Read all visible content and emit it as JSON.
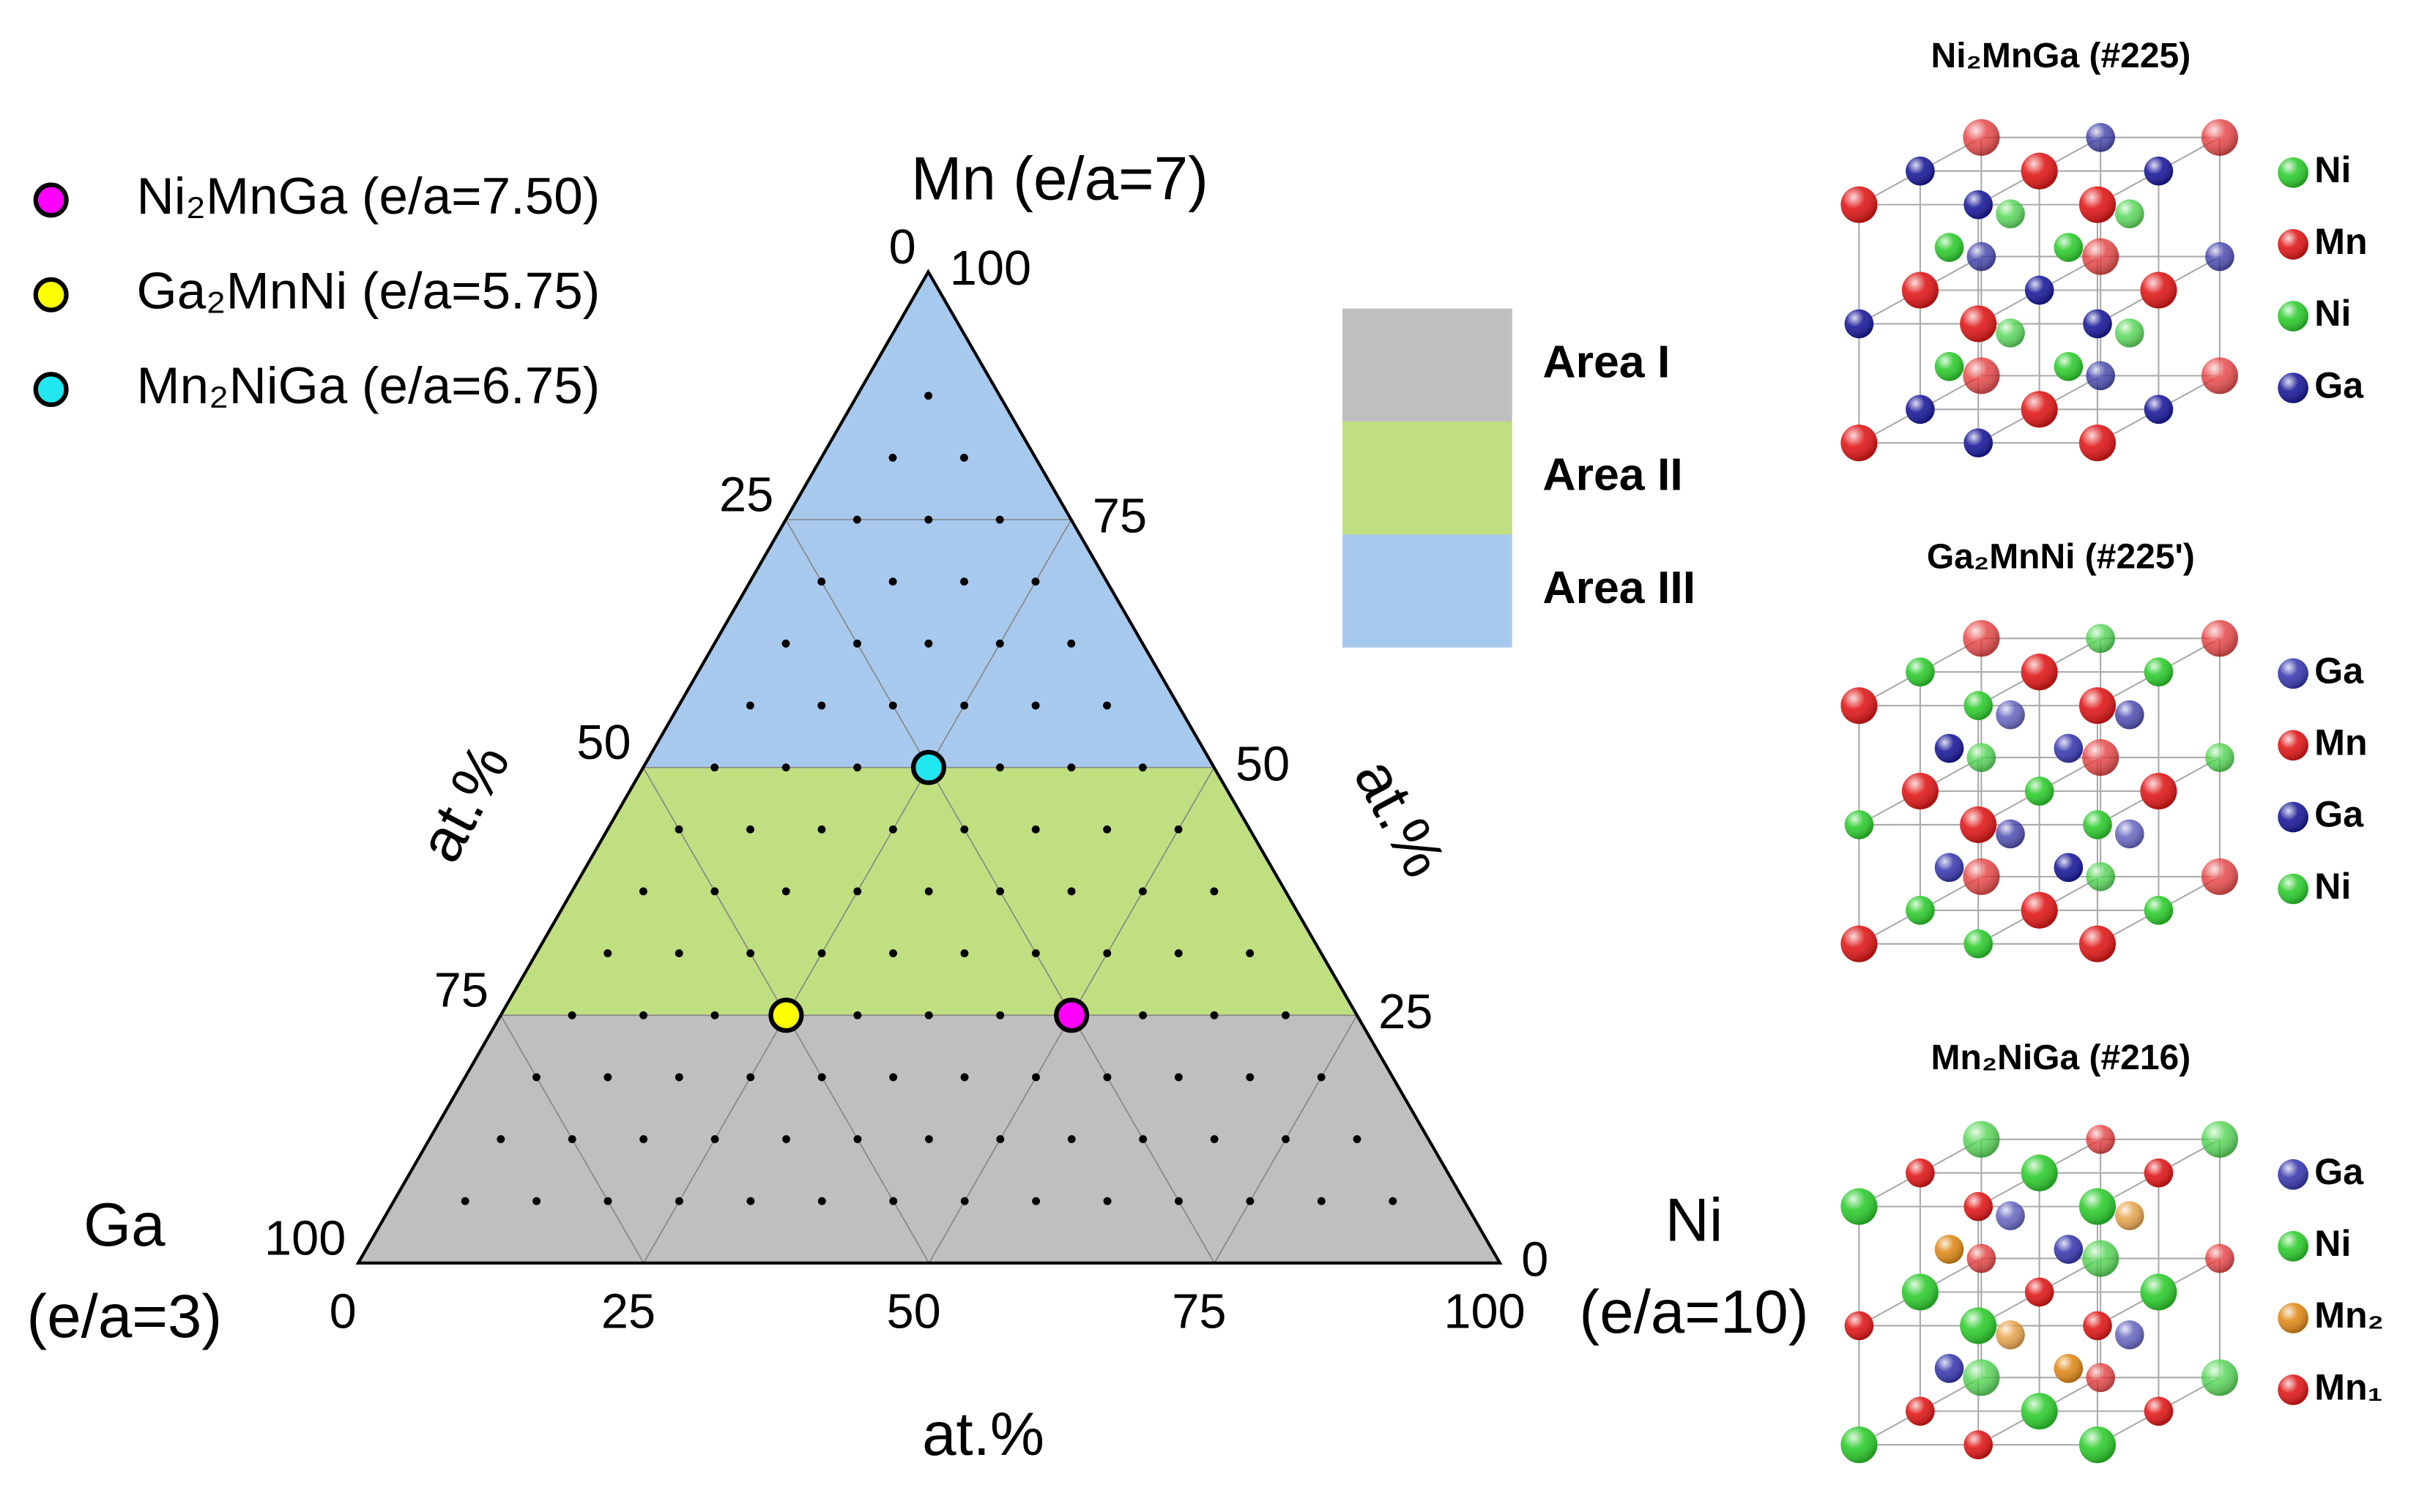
{
  "chart_data": {
    "type": "ternary",
    "vertices": {
      "top": [
        "Mn (e/a=7)"
      ],
      "left": [
        "Ga",
        "(e/a=3)"
      ],
      "right": [
        "Ni",
        "(e/a=10)"
      ]
    },
    "axes": {
      "bottom": {
        "component": "ni",
        "title": "at.%",
        "ticks": [
          0,
          25,
          50,
          75,
          100
        ]
      },
      "left": {
        "component": "ga",
        "title": "at.%",
        "ticks": [
          0,
          25,
          50,
          75,
          100
        ]
      },
      "right": {
        "component": "mn",
        "title": "at.%",
        "ticks": [
          0,
          25,
          50,
          75,
          100
        ]
      }
    },
    "dot_step": 6.25,
    "regions": [
      {
        "name": "Area I",
        "color": "#bfbfbf",
        "mn": [
          0,
          25
        ]
      },
      {
        "name": "Area II",
        "color": "#c0df80",
        "mn": [
          25,
          50
        ]
      },
      {
        "name": "Area III",
        "color": "#a8c9ee",
        "mn": [
          50,
          100
        ]
      }
    ],
    "series": [
      {
        "name": "Ni₂MnGa (e/a=7.50)",
        "color": "#ff00ff",
        "ni": 50,
        "mn": 25,
        "ga": 25
      },
      {
        "name": "Ga₂MnNi (e/a=5.75)",
        "color": "#ffff00",
        "ni": 25,
        "mn": 25,
        "ga": 50
      },
      {
        "name": "Mn₂NiGa (e/a=6.75)",
        "color": "#22e6f0",
        "ni": 25,
        "mn": 50,
        "ga": 25
      }
    ],
    "structures": [
      {
        "title": "Ni₂MnGa (#225)",
        "legend": [
          {
            "label": "Ni",
            "color": "#2ecc2e"
          },
          {
            "label": "Mn",
            "color": "#e01818"
          },
          {
            "label": "Ni",
            "color": "#2ecc2e"
          },
          {
            "label": "Ga",
            "color": "#1a1a9a"
          }
        ]
      },
      {
        "title": "Ga₂MnNi (#225')",
        "legend": [
          {
            "label": "Ga",
            "color": "#3a3ab0"
          },
          {
            "label": "Mn",
            "color": "#e01818"
          },
          {
            "label": "Ga",
            "color": "#1a1a9a"
          },
          {
            "label": "Ni",
            "color": "#2ecc2e"
          }
        ]
      },
      {
        "title": "Mn₂NiGa (#216)",
        "legend": [
          {
            "label": "Ga",
            "color": "#3a3ab0"
          },
          {
            "label": "Ni",
            "color": "#2ecc2e"
          },
          {
            "label": "Mn₂",
            "color": "#e08a1a"
          },
          {
            "label": "Mn₁",
            "color": "#e01818"
          }
        ]
      }
    ]
  }
}
